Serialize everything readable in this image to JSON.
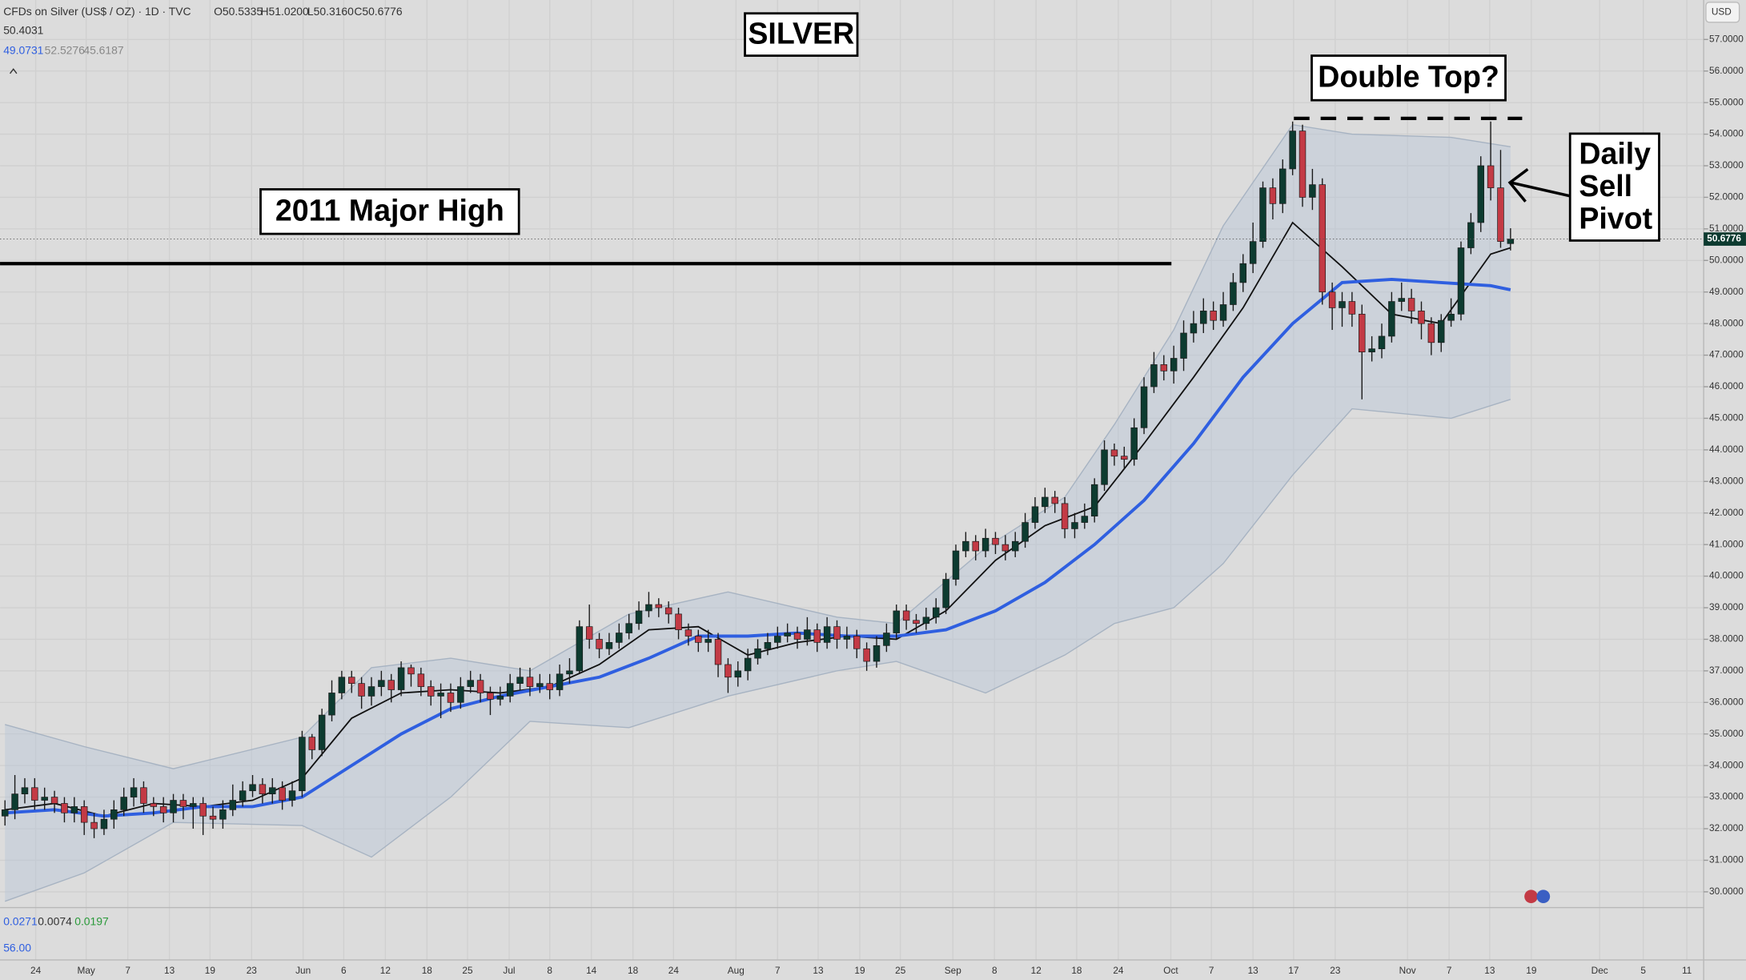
{
  "chart_data": {
    "type": "candlestick",
    "header": {
      "symbol": "CFDs on Silver (US$ / OZ) · 1D · TVC",
      "ohlc": [
        "O50.5335",
        "H51.0200",
        "L50.3160",
        "C50.6776"
      ],
      "line2": "50.4031",
      "line3": [
        "49.0731",
        "52.5276",
        "45.6187"
      ]
    },
    "currency": "USD",
    "price_tag": "50.6776",
    "indicator": {
      "values": [
        "0.0271",
        "0.0074",
        "0.0197"
      ],
      "level": "56.00"
    },
    "annotations": [
      {
        "text": "SILVER"
      },
      {
        "text": "Double Top?"
      },
      {
        "text": "2011 Major High"
      },
      {
        "text": [
          "Daily",
          "Sell",
          "Pivot"
        ]
      }
    ],
    "levels": [
      {
        "value": 49.9,
        "style": "solid"
      },
      {
        "value": 54.5,
        "style": "dashed"
      }
    ],
    "up_color": "#0d3b30",
    "down_color": "#c33a45",
    "open": [
      32.4,
      32.6,
      33.1,
      33.3,
      32.9,
      33.0,
      32.8,
      32.5,
      32.7,
      32.2,
      32.0,
      32.3,
      32.6,
      33.0,
      33.3,
      32.8,
      32.7,
      32.5,
      32.9,
      32.7,
      32.8,
      32.4,
      32.3,
      32.6,
      32.9,
      33.2,
      33.4,
      33.1,
      33.3,
      32.9,
      33.2,
      34.9,
      34.5,
      35.6,
      36.3,
      36.8,
      36.6,
      36.2,
      36.5,
      36.7,
      36.4,
      37.1,
      36.9,
      36.5,
      36.2,
      36.3,
      36.0,
      36.5,
      36.7,
      36.3,
      36.1,
      36.2,
      36.6,
      36.8,
      36.5,
      36.6,
      36.4,
      36.9,
      37.0,
      38.4,
      38.0,
      37.7,
      37.9,
      38.2,
      38.5,
      38.9,
      39.1,
      39.0,
      38.8,
      38.3,
      38.1,
      37.9,
      38.0,
      37.2,
      36.8,
      37.0,
      37.4,
      37.7,
      37.9,
      38.1,
      38.2,
      38.0,
      38.3,
      37.9,
      38.4,
      38.0,
      38.1,
      37.7,
      37.3,
      37.8,
      38.2,
      38.9,
      38.6,
      38.5,
      38.7,
      39.0,
      39.9,
      40.8,
      41.1,
      40.8,
      41.2,
      41.0,
      40.8,
      41.1,
      41.7,
      42.2,
      42.5,
      42.3,
      41.5,
      41.7,
      41.9,
      42.9,
      44.0,
      43.8,
      43.7,
      44.7,
      46.0,
      46.7,
      46.5,
      46.9,
      47.7,
      48.0,
      48.4,
      48.1,
      48.6,
      49.3,
      49.9,
      50.6,
      52.3,
      51.8,
      52.9,
      54.1,
      52.0,
      52.4,
      49.0,
      48.5,
      48.7,
      48.3,
      47.1,
      47.2,
      47.6,
      48.7,
      48.8,
      48.4,
      48.0,
      47.4,
      48.1,
      48.3,
      50.4,
      51.2,
      53.0,
      52.3,
      50.5335
    ],
    "high": [
      32.9,
      33.7,
      33.6,
      33.6,
      33.3,
      33.2,
      33.0,
      33.0,
      32.9,
      32.5,
      32.6,
      32.9,
      33.3,
      33.6,
      33.5,
      33.0,
      33.0,
      33.1,
      33.1,
      33.0,
      33.0,
      32.7,
      32.9,
      33.4,
      33.5,
      33.7,
      33.6,
      33.6,
      33.5,
      33.5,
      35.1,
      35.0,
      35.8,
      36.7,
      37.0,
      37.0,
      36.8,
      36.8,
      37.0,
      36.9,
      37.3,
      37.2,
      37.1,
      36.7,
      36.6,
      36.6,
      36.8,
      37.0,
      36.9,
      36.5,
      36.5,
      36.9,
      37.1,
      37.1,
      36.9,
      36.9,
      37.2,
      37.4,
      38.6,
      39.1,
      38.2,
      38.2,
      38.5,
      38.8,
      39.2,
      39.5,
      39.3,
      39.2,
      39.0,
      38.5,
      38.3,
      38.3,
      38.2,
      37.4,
      37.3,
      37.7,
      38.0,
      38.2,
      38.4,
      38.5,
      38.4,
      38.7,
      38.5,
      38.7,
      38.6,
      38.4,
      38.3,
      37.9,
      38.1,
      38.5,
      39.1,
      39.1,
      38.8,
      39.0,
      39.3,
      40.1,
      41.0,
      41.4,
      41.3,
      41.5,
      41.4,
      41.3,
      41.4,
      42.0,
      42.5,
      42.8,
      42.7,
      42.5,
      42.0,
      42.3,
      43.1,
      44.3,
      44.2,
      44.1,
      45.0,
      46.3,
      47.1,
      47.0,
      47.3,
      48.1,
      48.4,
      48.8,
      48.7,
      49.0,
      49.6,
      50.2,
      51.2,
      52.5,
      52.6,
      53.2,
      54.4,
      54.3,
      52.9,
      52.6,
      49.3,
      49.0,
      49.0,
      48.6,
      47.6,
      48.0,
      49.0,
      49.3,
      49.1,
      48.7,
      48.2,
      48.3,
      48.8,
      50.6,
      51.5,
      53.3,
      54.4,
      53.5,
      51.02
    ],
    "low": [
      32.1,
      32.3,
      32.8,
      32.6,
      32.6,
      32.5,
      32.2,
      32.2,
      31.8,
      31.7,
      31.8,
      32.0,
      32.4,
      32.7,
      32.5,
      32.4,
      32.2,
      32.2,
      32.3,
      32.0,
      31.8,
      32.0,
      32.0,
      32.4,
      32.7,
      33.0,
      32.8,
      32.8,
      32.6,
      32.7,
      33.0,
      34.2,
      34.3,
      35.4,
      36.1,
      36.3,
      35.8,
      35.9,
      36.2,
      36.0,
      36.2,
      36.5,
      36.2,
      35.9,
      35.5,
      35.7,
      35.8,
      36.3,
      36.0,
      35.6,
      35.9,
      36.0,
      36.4,
      36.2,
      36.3,
      36.1,
      36.2,
      36.6,
      36.9,
      37.7,
      37.4,
      37.5,
      37.7,
      38.0,
      38.3,
      38.7,
      38.7,
      38.5,
      38.0,
      37.8,
      37.6,
      37.6,
      36.8,
      36.3,
      36.5,
      36.7,
      37.2,
      37.5,
      37.7,
      37.9,
      37.7,
      37.8,
      37.6,
      37.7,
      37.7,
      37.7,
      37.4,
      37.0,
      37.1,
      37.6,
      38.0,
      38.3,
      38.2,
      38.3,
      38.5,
      38.8,
      39.7,
      40.6,
      40.5,
      40.6,
      40.7,
      40.5,
      40.6,
      40.9,
      41.5,
      42.0,
      42.0,
      41.2,
      41.2,
      41.5,
      41.7,
      42.7,
      43.5,
      43.4,
      43.5,
      44.5,
      45.8,
      46.2,
      46.1,
      46.5,
      47.4,
      47.7,
      47.8,
      47.9,
      48.4,
      49.0,
      49.6,
      50.4,
      51.3,
      51.5,
      52.7,
      51.7,
      51.6,
      48.6,
      47.8,
      47.9,
      47.9,
      45.6,
      46.8,
      46.9,
      47.4,
      48.4,
      48.0,
      47.5,
      47.0,
      47.1,
      47.9,
      48.1,
      50.2,
      50.9,
      51.9,
      50.4,
      50.316
    ],
    "close": [
      32.6,
      33.1,
      33.3,
      32.9,
      33.0,
      32.8,
      32.5,
      32.7,
      32.2,
      32.0,
      32.3,
      32.6,
      33.0,
      33.3,
      32.8,
      32.7,
      32.5,
      32.9,
      32.7,
      32.8,
      32.4,
      32.3,
      32.6,
      32.9,
      33.2,
      33.4,
      33.1,
      33.3,
      32.9,
      33.2,
      34.9,
      34.5,
      35.6,
      36.3,
      36.8,
      36.6,
      36.2,
      36.5,
      36.7,
      36.4,
      37.1,
      36.9,
      36.5,
      36.2,
      36.3,
      36.0,
      36.5,
      36.7,
      36.3,
      36.1,
      36.2,
      36.6,
      36.8,
      36.5,
      36.6,
      36.4,
      36.9,
      37.0,
      38.4,
      38.0,
      37.7,
      37.9,
      38.2,
      38.5,
      38.9,
      39.1,
      39.0,
      38.8,
      38.3,
      38.1,
      37.9,
      38.0,
      37.2,
      36.8,
      37.0,
      37.4,
      37.7,
      37.9,
      38.1,
      38.2,
      38.0,
      38.3,
      37.9,
      38.4,
      38.0,
      38.1,
      37.7,
      37.3,
      37.8,
      38.2,
      38.9,
      38.6,
      38.5,
      38.7,
      39.0,
      39.9,
      40.8,
      41.1,
      40.8,
      41.2,
      41.0,
      40.8,
      41.1,
      41.7,
      42.2,
      42.5,
      42.3,
      41.5,
      41.7,
      41.9,
      42.9,
      44.0,
      43.8,
      43.7,
      44.7,
      46.0,
      46.7,
      46.5,
      46.9,
      47.7,
      48.0,
      48.4,
      48.1,
      48.6,
      49.3,
      49.9,
      50.6,
      52.3,
      51.8,
      52.9,
      54.1,
      52.0,
      52.4,
      49.0,
      48.5,
      48.7,
      48.3,
      47.1,
      47.2,
      47.6,
      48.7,
      48.8,
      48.4,
      48.0,
      47.4,
      48.1,
      48.3,
      50.4,
      51.2,
      53.0,
      52.3,
      50.6,
      50.6776
    ],
    "lines": [
      {
        "color": "#111111",
        "width": 1.3,
        "x": [
          0,
          5,
          10,
          15,
          20,
          25,
          30,
          35,
          40,
          45,
          50,
          55,
          60,
          65,
          70,
          75,
          80,
          85,
          90,
          95,
          100,
          105,
          110,
          115,
          120,
          125,
          130,
          135,
          140,
          145,
          150,
          152
        ],
        "values": [
          32.6,
          32.8,
          32.4,
          32.8,
          32.7,
          32.9,
          33.6,
          35.5,
          36.3,
          36.4,
          36.3,
          36.5,
          37.2,
          38.3,
          38.4,
          37.5,
          37.9,
          38.1,
          38.0,
          38.9,
          40.5,
          41.6,
          42.2,
          44.2,
          46.3,
          48.5,
          51.2,
          49.8,
          48.3,
          48.0,
          50.2,
          50.4
        ]
      },
      {
        "color": "#2f5fe0",
        "width": 2.8,
        "x": [
          0,
          5,
          10,
          15,
          20,
          25,
          30,
          35,
          40,
          45,
          50,
          55,
          60,
          65,
          70,
          75,
          80,
          85,
          90,
          95,
          100,
          105,
          110,
          115,
          120,
          125,
          130,
          135,
          140,
          145,
          150,
          152
        ],
        "values": [
          32.5,
          32.6,
          32.4,
          32.5,
          32.7,
          32.7,
          33.0,
          34.0,
          35.0,
          35.8,
          36.2,
          36.5,
          36.8,
          37.4,
          38.1,
          38.1,
          38.2,
          38.1,
          38.1,
          38.3,
          38.9,
          39.8,
          41.0,
          42.4,
          44.2,
          46.3,
          48.0,
          49.3,
          49.4,
          49.3,
          49.2,
          49.07
        ]
      }
    ],
    "band": {
      "color": "#b9c6d6",
      "x": [
        0,
        8,
        17,
        30,
        37,
        45,
        53,
        63,
        73,
        84,
        90,
        99,
        107,
        112,
        118,
        123,
        130,
        136,
        146,
        152
      ],
      "upper": [
        35.3,
        34.6,
        33.9,
        34.9,
        37.1,
        37.4,
        37.0,
        38.8,
        39.5,
        38.7,
        38.5,
        40.9,
        42.5,
        44.8,
        47.8,
        51.1,
        54.3,
        54.0,
        53.9,
        53.6
      ],
      "lower": [
        29.7,
        30.6,
        32.2,
        32.1,
        31.1,
        33.0,
        35.4,
        35.2,
        36.2,
        37.0,
        37.3,
        36.3,
        37.5,
        38.5,
        39.0,
        40.4,
        43.2,
        45.3,
        45.0,
        45.6
      ]
    },
    "xlim": [
      -0.5,
      171.5
    ],
    "ylim": [
      29.5,
      58.25
    ],
    "grid": true,
    "xticks": [
      {
        "value": 3.1,
        "label": "24"
      },
      {
        "value": 8.2,
        "label": "May"
      },
      {
        "value": 12.4,
        "label": "7"
      },
      {
        "value": 16.6,
        "label": "13"
      },
      {
        "value": 20.7,
        "label": "19"
      },
      {
        "value": 24.9,
        "label": "23"
      },
      {
        "value": 30.1,
        "label": "Jun"
      },
      {
        "value": 34.2,
        "label": "6"
      },
      {
        "value": 38.4,
        "label": "12"
      },
      {
        "value": 42.6,
        "label": "18"
      },
      {
        "value": 46.7,
        "label": "25"
      },
      {
        "value": 50.9,
        "label": "Jul"
      },
      {
        "value": 55.0,
        "label": "8"
      },
      {
        "value": 59.2,
        "label": "14"
      },
      {
        "value": 63.4,
        "label": "18"
      },
      {
        "value": 67.5,
        "label": "24"
      },
      {
        "value": 73.8,
        "label": "Aug"
      },
      {
        "value": 78.0,
        "label": "7"
      },
      {
        "value": 82.1,
        "label": "13"
      },
      {
        "value": 86.3,
        "label": "19"
      },
      {
        "value": 90.4,
        "label": "25"
      },
      {
        "value": 95.7,
        "label": "Sep"
      },
      {
        "value": 99.9,
        "label": "8"
      },
      {
        "value": 104.1,
        "label": "12"
      },
      {
        "value": 108.2,
        "label": "18"
      },
      {
        "value": 112.4,
        "label": "24"
      },
      {
        "value": 117.7,
        "label": "Oct"
      },
      {
        "value": 121.8,
        "label": "7"
      },
      {
        "value": 126.0,
        "label": "13"
      },
      {
        "value": 130.1,
        "label": "17"
      },
      {
        "value": 134.3,
        "label": "23"
      },
      {
        "value": 141.6,
        "label": "Nov"
      },
      {
        "value": 145.8,
        "label": "7"
      },
      {
        "value": 149.9,
        "label": "13"
      },
      {
        "value": 154.1,
        "label": "19"
      },
      {
        "value": 161.0,
        "label": "Dec"
      },
      {
        "value": 165.4,
        "label": "5"
      },
      {
        "value": 169.8,
        "label": "11"
      }
    ],
    "yticks": [
      {
        "value": 30,
        "label": "30.0000"
      },
      {
        "value": 31,
        "label": "31.0000"
      },
      {
        "value": 32,
        "label": "32.0000"
      },
      {
        "value": 33,
        "label": "33.0000"
      },
      {
        "value": 34,
        "label": "34.0000"
      },
      {
        "value": 35,
        "label": "35.0000"
      },
      {
        "value": 36,
        "label": "36.0000"
      },
      {
        "value": 37,
        "label": "37.0000"
      },
      {
        "value": 38,
        "label": "38.0000"
      },
      {
        "value": 39,
        "label": "39.0000"
      },
      {
        "value": 40,
        "label": "40.0000"
      },
      {
        "value": 41,
        "label": "41.0000"
      },
      {
        "value": 42,
        "label": "42.0000"
      },
      {
        "value": 43,
        "label": "43.0000"
      },
      {
        "value": 44,
        "label": "44.0000"
      },
      {
        "value": 45,
        "label": "45.0000"
      },
      {
        "value": 46,
        "label": "46.0000"
      },
      {
        "value": 47,
        "label": "47.0000"
      },
      {
        "value": 48,
        "label": "48.0000"
      },
      {
        "value": 49,
        "label": "49.0000"
      },
      {
        "value": 50,
        "label": "50.0000"
      },
      {
        "value": 51,
        "label": "51.0000"
      },
      {
        "value": 52,
        "label": "52.0000"
      },
      {
        "value": 53,
        "label": "53.0000"
      },
      {
        "value": 54,
        "label": "54.0000"
      },
      {
        "value": 55,
        "label": "55.0000"
      },
      {
        "value": 56,
        "label": "56.0000"
      },
      {
        "value": 57,
        "label": "57.0000"
      }
    ]
  }
}
